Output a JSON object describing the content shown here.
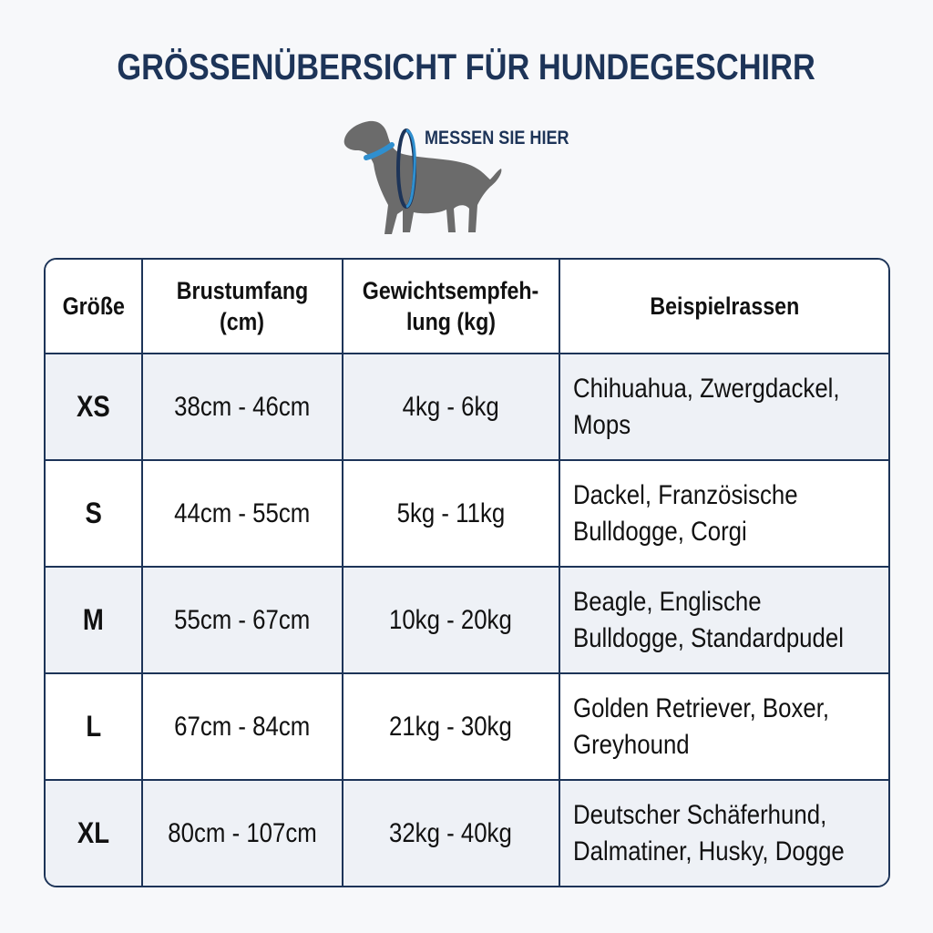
{
  "title": "GRÖSSENÜBERSICHT FÜR HUNDEGESCHIRR",
  "illustration": {
    "icon": "dog-with-chest-measure-icon",
    "label": "MESSEN SIE HIER",
    "colors": {
      "dog": "#6b6b6b",
      "collar": "#2f8fcf",
      "ring": "#1d3458"
    }
  },
  "colors": {
    "heading": "#1d3458",
    "border": "#1d3458",
    "row_alt": "#eef1f6"
  },
  "table": {
    "headers": [
      "Größe",
      "Brustumfang (cm)",
      "Gewichtsempfeh-lung (kg)",
      "Beispielrassen"
    ],
    "header_lines": [
      [
        "Größe"
      ],
      [
        "Brustumfang",
        "(cm)"
      ],
      [
        "Gewichtsempfeh-",
        "lung (kg)"
      ],
      [
        "Beispielrassen"
      ]
    ],
    "rows": [
      {
        "size": "XS",
        "chest": "38cm - 46cm",
        "weight": "4kg - 6kg",
        "breeds": [
          "Chihuahua, Zwergdackel,",
          "Mops"
        ]
      },
      {
        "size": "S",
        "chest": "44cm - 55cm",
        "weight": "5kg - 11kg",
        "breeds": [
          "Dackel, Französische",
          "Bulldogge, Corgi"
        ]
      },
      {
        "size": "M",
        "chest": "55cm - 67cm",
        "weight": "10kg - 20kg",
        "breeds": [
          "Beagle, Englische",
          "Bulldogge, Standardpudel"
        ]
      },
      {
        "size": "L",
        "chest": "67cm - 84cm",
        "weight": "21kg - 30kg",
        "breeds": [
          "Golden Retriever, Boxer,",
          "Greyhound"
        ]
      },
      {
        "size": "XL",
        "chest": "80cm - 107cm",
        "weight": "32kg - 40kg",
        "breeds": [
          "Deutscher Schäferhund,",
          "Dalmatiner, Husky, Dogge"
        ]
      }
    ]
  }
}
